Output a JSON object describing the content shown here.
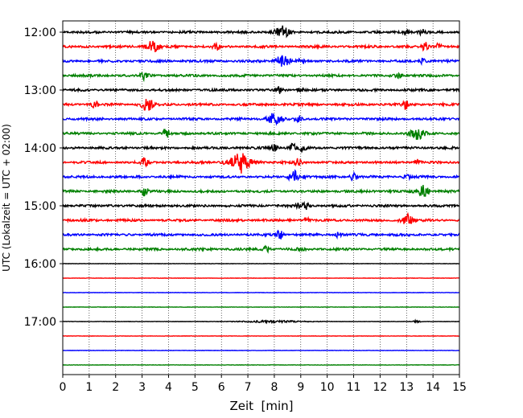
{
  "chart_data": {
    "type": "line",
    "title": "",
    "xlabel": "Zeit  [min]",
    "ylabel": "UTC (Lokalzeit = UTC + 02:00)",
    "xlim": [
      0,
      15
    ],
    "x_ticks": [
      0,
      1,
      2,
      3,
      4,
      5,
      6,
      7,
      8,
      9,
      10,
      11,
      12,
      13,
      14,
      15
    ],
    "x_tick_labels": [
      "0",
      "1",
      "2",
      "3",
      "4",
      "5",
      "6",
      "7",
      "8",
      "9",
      "10",
      "11",
      "12",
      "13",
      "14",
      "15"
    ],
    "y_tick_labels": [
      "12:00",
      "13:00",
      "14:00",
      "15:00",
      "16:00",
      "17:00"
    ],
    "grid": "x-dotted",
    "legend": "none",
    "color_cycle": [
      "#000000",
      "#ff0000",
      "#0000ff",
      "#008000"
    ],
    "trace_start_times": [
      "12:00",
      "12:15",
      "12:30",
      "12:45",
      "13:00",
      "13:15",
      "13:30",
      "13:45",
      "14:00",
      "14:15",
      "14:30",
      "14:45",
      "15:00",
      "15:15",
      "15:30",
      "15:45",
      "16:00",
      "16:15",
      "16:30",
      "16:45",
      "17:00",
      "17:15",
      "17:30",
      "17:45"
    ],
    "events": [
      [
        [
          8.3,
          1.0
        ],
        [
          13.0,
          0.6
        ],
        [
          13.6,
          0.5
        ]
      ],
      [
        [
          3.4,
          1.0
        ],
        [
          5.8,
          0.6
        ],
        [
          13.7,
          0.7
        ],
        [
          14.2,
          0.5
        ]
      ],
      [
        [
          8.3,
          1.0
        ],
        [
          9.0,
          0.5
        ],
        [
          13.6,
          0.5
        ]
      ],
      [
        [
          3.1,
          0.8
        ],
        [
          12.7,
          0.4
        ]
      ],
      [
        [
          8.2,
          0.5
        ],
        [
          9.0,
          0.5
        ]
      ],
      [
        [
          1.2,
          0.6
        ],
        [
          3.2,
          1.0
        ],
        [
          13.0,
          0.8
        ]
      ],
      [
        [
          8.0,
          1.0
        ],
        [
          8.9,
          0.6
        ]
      ],
      [
        [
          3.9,
          0.8
        ],
        [
          13.4,
          1.0
        ]
      ],
      [
        [
          8.0,
          0.6
        ],
        [
          8.7,
          0.7
        ],
        [
          9.1,
          0.6
        ]
      ],
      [
        [
          3.1,
          0.8
        ],
        [
          6.7,
          1.0
        ],
        [
          8.9,
          0.6
        ],
        [
          13.4,
          0.5
        ]
      ],
      [
        [
          8.8,
          1.0
        ],
        [
          11.0,
          0.8
        ],
        [
          13.0,
          0.5
        ]
      ],
      [
        [
          3.1,
          0.8
        ],
        [
          13.6,
          1.0
        ]
      ],
      [
        [
          9.2,
          0.6
        ],
        [
          8.9,
          0.4
        ]
      ],
      [
        [
          13.0,
          1.0
        ],
        [
          9.2,
          0.4
        ]
      ],
      [
        [
          8.2,
          0.8
        ],
        [
          10.4,
          0.4
        ]
      ],
      [
        [
          7.7,
          0.5
        ],
        [
          9.0,
          0.2
        ]
      ],
      [],
      [],
      [],
      [],
      [
        [
          13.4,
          0.4
        ]
      ],
      [],
      [],
      []
    ]
  }
}
